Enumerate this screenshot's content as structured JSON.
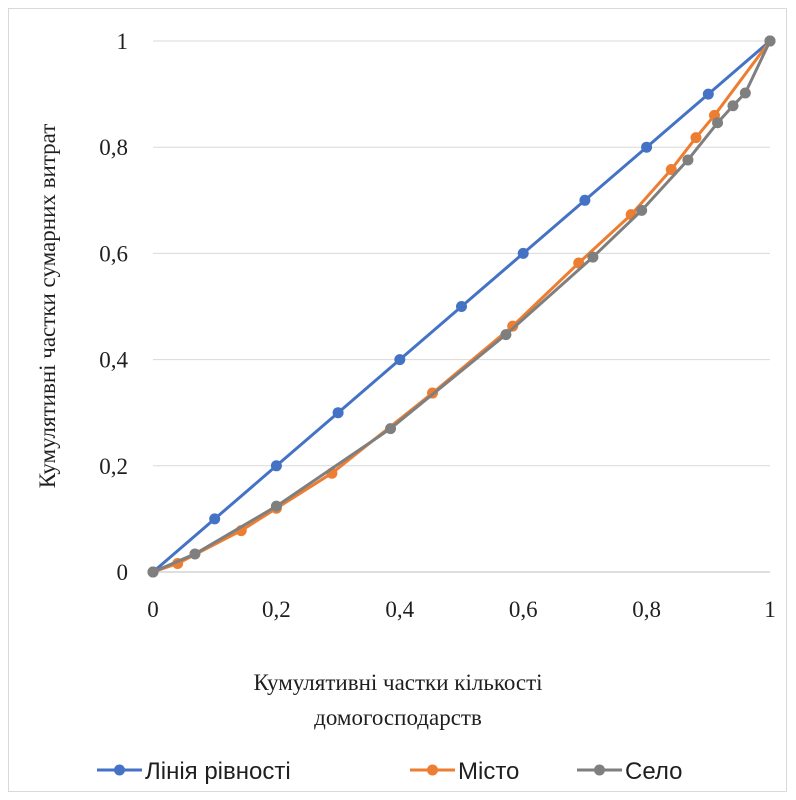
{
  "chart_data": {
    "type": "line",
    "xlabel_lines": [
      "Кумулятивні частки кількості",
      "домогосподарств"
    ],
    "ylabel": "Кумулятивні частки сумарних витрат",
    "xlim": [
      0,
      1
    ],
    "ylim": [
      0,
      1
    ],
    "x_ticks": [
      {
        "value": 0,
        "label": "0"
      },
      {
        "value": 0.2,
        "label": "0,2"
      },
      {
        "value": 0.4,
        "label": "0,4"
      },
      {
        "value": 0.6,
        "label": "0,6"
      },
      {
        "value": 0.8,
        "label": "0,8"
      },
      {
        "value": 1,
        "label": "1"
      }
    ],
    "y_ticks": [
      {
        "value": 0,
        "label": "0"
      },
      {
        "value": 0.2,
        "label": "0,2"
      },
      {
        "value": 0.4,
        "label": "0,4"
      },
      {
        "value": 0.6,
        "label": "0,6"
      },
      {
        "value": 0.8,
        "label": "0,8"
      },
      {
        "value": 1,
        "label": "1"
      }
    ],
    "grid": "horizontal",
    "legend_position": "bottom",
    "series": [
      {
        "name": "Лінія рівності",
        "color": "#4472c4",
        "points": [
          [
            0,
            0
          ],
          [
            0.1,
            0.1
          ],
          [
            0.2,
            0.2
          ],
          [
            0.3,
            0.3
          ],
          [
            0.4,
            0.4
          ],
          [
            0.5,
            0.5
          ],
          [
            0.6,
            0.6
          ],
          [
            0.7,
            0.7
          ],
          [
            0.8,
            0.8
          ],
          [
            0.9,
            0.9
          ],
          [
            1,
            1
          ]
        ]
      },
      {
        "name": "Місто",
        "color": "#ed7d31",
        "points": [
          [
            0,
            0
          ],
          [
            0.04,
            0.016
          ],
          [
            0.143,
            0.078
          ],
          [
            0.2,
            0.12
          ],
          [
            0.29,
            0.186
          ],
          [
            0.453,
            0.337
          ],
          [
            0.583,
            0.463
          ],
          [
            0.69,
            0.582
          ],
          [
            0.775,
            0.673
          ],
          [
            0.84,
            0.758
          ],
          [
            0.88,
            0.818
          ],
          [
            0.91,
            0.86
          ],
          [
            1,
            1
          ]
        ]
      },
      {
        "name": "Село",
        "color": "#7f7f7f",
        "points": [
          [
            0,
            0
          ],
          [
            0.068,
            0.034
          ],
          [
            0.2,
            0.124
          ],
          [
            0.385,
            0.27
          ],
          [
            0.572,
            0.447
          ],
          [
            0.713,
            0.593
          ],
          [
            0.792,
            0.681
          ],
          [
            0.867,
            0.776
          ],
          [
            0.915,
            0.846
          ],
          [
            0.94,
            0.878
          ],
          [
            0.96,
            0.902
          ],
          [
            1,
            1
          ]
        ]
      }
    ]
  }
}
